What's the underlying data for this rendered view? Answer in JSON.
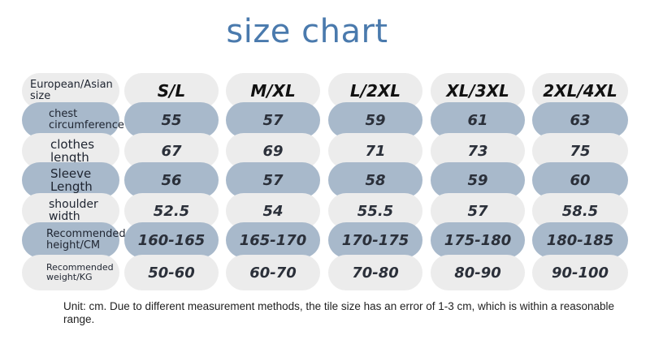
{
  "title": "size chart",
  "colors": {
    "title": "#4a7aad",
    "gray_row": "#ececec",
    "blue_row": "#a8b9cb"
  },
  "header": {
    "label": "European/Asian size",
    "sizes": [
      "S/L",
      "M/XL",
      "L/2XL",
      "XL/3XL",
      "2XL/4XL"
    ]
  },
  "rows": [
    {
      "label": "chest circumference",
      "values": [
        "55",
        "57",
        "59",
        "61",
        "63"
      ]
    },
    {
      "label": "clothes length",
      "values": [
        "67",
        "69",
        "71",
        "73",
        "75"
      ]
    },
    {
      "label": "Sleeve Length",
      "values": [
        "56",
        "57",
        "58",
        "59",
        "60"
      ]
    },
    {
      "label": "shoulder width",
      "values": [
        "52.5",
        "54",
        "55.5",
        "57",
        "58.5"
      ]
    },
    {
      "label": "Recommended height/CM",
      "values": [
        "160-165",
        "165-170",
        "170-175",
        "175-180",
        "180-185"
      ]
    },
    {
      "label": "Recommended weight/KG",
      "values": [
        "50-60",
        "60-70",
        "70-80",
        "80-90",
        "90-100"
      ]
    }
  ],
  "note": "Unit: cm. Due to different measurement methods, the tile size has an error of 1-3 cm, which is within a reasonable range."
}
